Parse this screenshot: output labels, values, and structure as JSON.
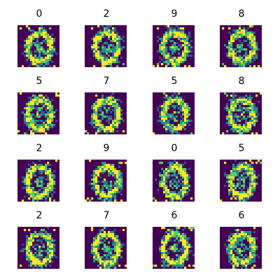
{
  "chart_data": {
    "type": "heatmap",
    "rows": 4,
    "cols": 4,
    "colormap": "viridis",
    "panels": [
      {
        "title": "0"
      },
      {
        "title": "2"
      },
      {
        "title": "9"
      },
      {
        "title": "8"
      },
      {
        "title": "5"
      },
      {
        "title": "7"
      },
      {
        "title": "5"
      },
      {
        "title": "8"
      },
      {
        "title": "2"
      },
      {
        "title": "9"
      },
      {
        "title": "0"
      },
      {
        "title": "5"
      },
      {
        "title": "2"
      },
      {
        "title": "7"
      },
      {
        "title": "6"
      },
      {
        "title": "6"
      }
    ]
  },
  "colors": {
    "background": "#440154",
    "low": "#3b528b",
    "mid": "#21918c",
    "high": "#5ec962",
    "peak": "#fde725"
  }
}
